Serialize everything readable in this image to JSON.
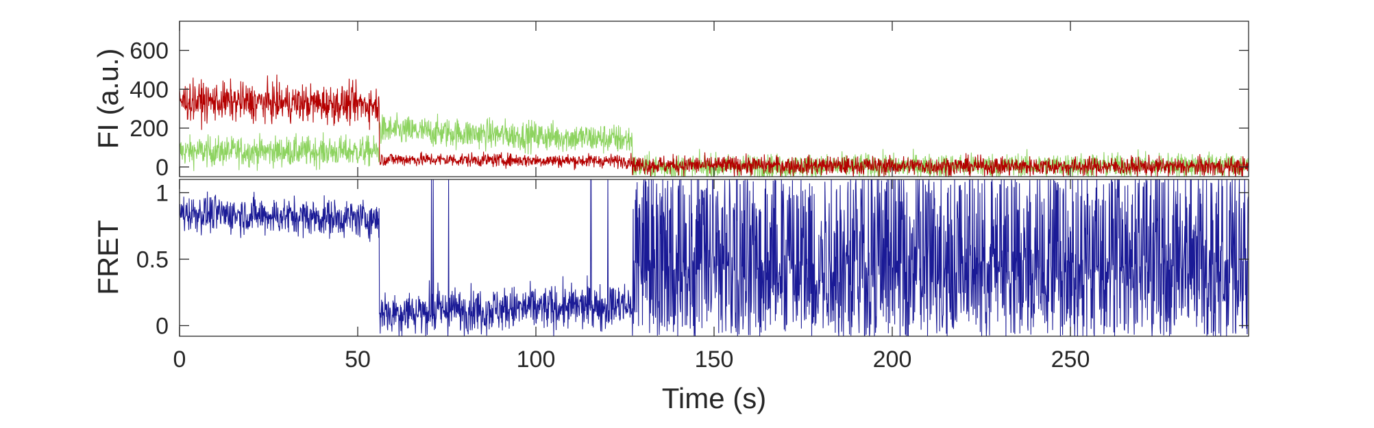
{
  "chart_data": [
    {
      "type": "line",
      "ylabel": "FI (a.u.)",
      "xlim": [
        0,
        300
      ],
      "ylim": [
        -50,
        750
      ],
      "x_ticks": [
        0,
        50,
        100,
        150,
        200,
        250
      ],
      "y_ticks": [
        0,
        200,
        400,
        600
      ],
      "grid": false,
      "series": [
        {
          "color": "#8dd35f",
          "x": [
            0,
            56,
            56,
            127,
            127,
            300
          ],
          "values": [
            80,
            80,
            190,
            140,
            0,
            10
          ]
        },
        {
          "color": "#b40000",
          "x": [
            0,
            56,
            56,
            127,
            127,
            300
          ],
          "values": [
            340,
            320,
            40,
            30,
            10,
            0
          ]
        }
      ]
    },
    {
      "type": "line",
      "xlabel": "Time (s)",
      "ylabel": "FRET",
      "xlim": [
        0,
        300
      ],
      "ylim": [
        -0.08,
        1.1
      ],
      "x_ticks": [
        0,
        50,
        100,
        150,
        200,
        250
      ],
      "y_ticks": [
        0,
        0.5,
        1
      ],
      "grid": false,
      "series": [
        {
          "color": "#1a1a96",
          "x": [
            0,
            56,
            56,
            127,
            127,
            300
          ],
          "values": [
            0.85,
            0.8,
            0.1,
            0.15,
            0.5,
            0.5
          ]
        }
      ]
    }
  ]
}
